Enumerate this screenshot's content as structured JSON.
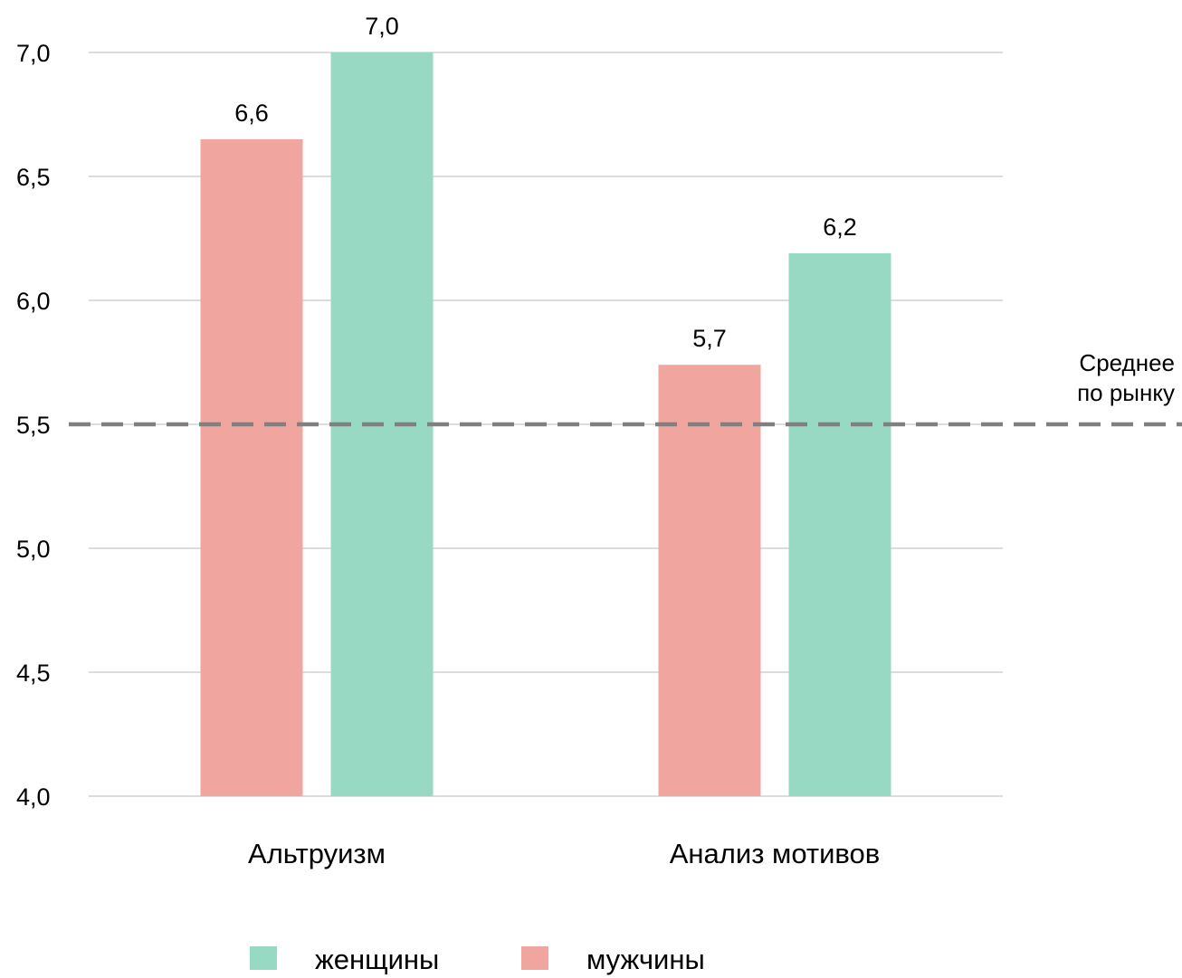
{
  "chart_data": {
    "type": "bar",
    "categories": [
      "Альтруизм",
      "Анализ мотивов"
    ],
    "series": [
      {
        "name": "мужчины",
        "color": "#f1a59f",
        "values": [
          6.65,
          5.74
        ],
        "labels": [
          "6,6",
          "5,7"
        ]
      },
      {
        "name": "женщины",
        "color": "#98d9c3",
        "values": [
          7.0,
          6.19
        ],
        "labels": [
          "7,0",
          "6,2"
        ]
      }
    ],
    "ylim": [
      4.0,
      7.0
    ],
    "yticks": [
      4.0,
      4.5,
      5.0,
      5.5,
      6.0,
      6.5,
      7.0
    ],
    "ytick_labels": [
      "4,0",
      "4,5",
      "5,0",
      "5,5",
      "6,0",
      "6,5",
      "7,0"
    ],
    "grid": true,
    "reference_line": {
      "value": 5.5,
      "label_lines": [
        "Среднее",
        "по рынку"
      ],
      "style": "dashed",
      "color": "#808080"
    },
    "legend": {
      "placement": "bottom-center",
      "items": [
        {
          "label": "женщины",
          "color": "#98d9c3"
        },
        {
          "label": "мужчины",
          "color": "#f1a59f"
        }
      ]
    },
    "title": "",
    "xlabel": "",
    "ylabel": ""
  }
}
